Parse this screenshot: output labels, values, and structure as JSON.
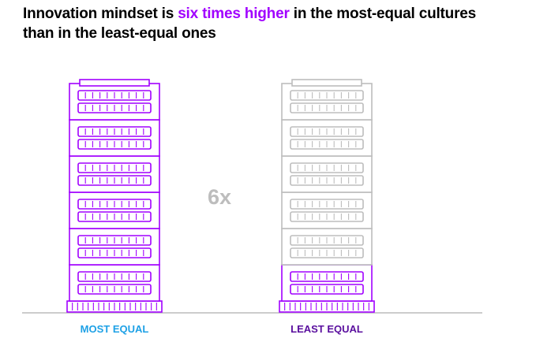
{
  "headline": {
    "before": "Innovation mindset is ",
    "highlight": "six times higher",
    "after": " in the most-equal cultures",
    "line2": "than in the least-equal ones"
  },
  "colors": {
    "accent": "#a100ff",
    "muted": "#bdbdbd",
    "ratio_text": "#bdbdbd",
    "label_most": "#1ea1e6",
    "label_least": "#5a0f9e",
    "baseline": "#cccccc"
  },
  "chart_data": {
    "type": "bar",
    "categories": [
      "MOST EQUAL",
      "LEAST EQUAL"
    ],
    "series": [
      {
        "values": [
          6,
          1
        ]
      }
    ],
    "ymax": 6,
    "ratio_label": "6x"
  }
}
